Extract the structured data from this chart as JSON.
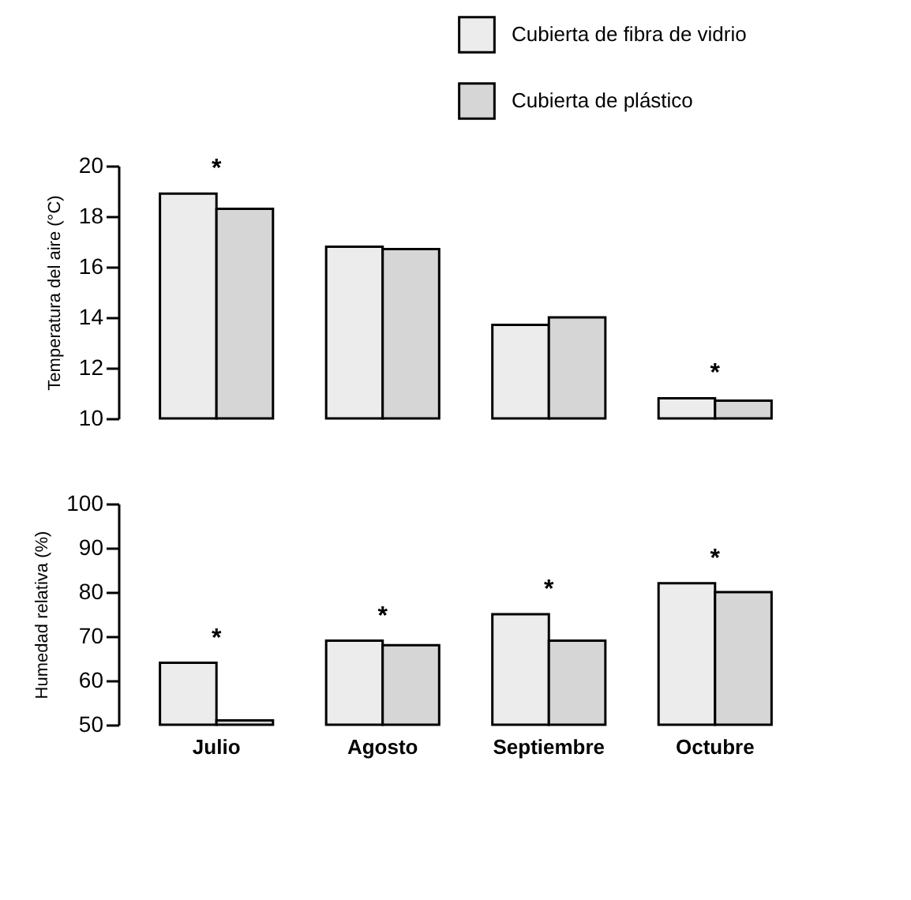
{
  "chart_data": [
    {
      "type": "bar",
      "ylabel": "Temperatura del aire (°C)",
      "categories": [
        "Julio",
        "Agosto",
        "Septiembre",
        "Octubre"
      ],
      "series": [
        {
          "name": "Cubierta de fibra de vidrio",
          "color": "#ececec",
          "values": [
            18.9,
            16.8,
            13.7,
            10.8
          ]
        },
        {
          "name": "Cubierta de plástico",
          "color": "#d6d6d6",
          "values": [
            18.3,
            16.7,
            14.0,
            10.7
          ]
        }
      ],
      "ylim": [
        10,
        20
      ],
      "yticks": [
        10,
        12,
        14,
        16,
        18,
        20
      ],
      "legend": "top right",
      "tick_labels": "y",
      "annotations": [
        {
          "text": "*",
          "x": "Julio",
          "y": 18.9
        },
        {
          "text": "*",
          "x": "Octubre",
          "y": 10.8
        }
      ]
    },
    {
      "type": "bar",
      "ylabel": "Humedad relativa (%)",
      "categories": [
        "Julio",
        "Agosto",
        "Septiembre",
        "Octubre"
      ],
      "series": [
        {
          "name": "Cubierta de fibra de vidrio",
          "color": "#ececec",
          "values": [
            64,
            69,
            75,
            82
          ]
        },
        {
          "name": "Cubierta de plástico",
          "color": "#d6d6d6",
          "values": [
            51,
            68,
            69,
            80
          ]
        }
      ],
      "ylim": [
        50,
        100
      ],
      "yticks": [
        50,
        60,
        70,
        80,
        90,
        100
      ],
      "annotations": [
        {
          "text": "*",
          "x": "Julio",
          "y": 64
        },
        {
          "text": "*",
          "x": "Agosto",
          "y": 69
        },
        {
          "text": "*",
          "x": "Septiembre",
          "y": 75
        },
        {
          "text": "*",
          "x": "Octubre",
          "y": 82
        }
      ]
    }
  ]
}
